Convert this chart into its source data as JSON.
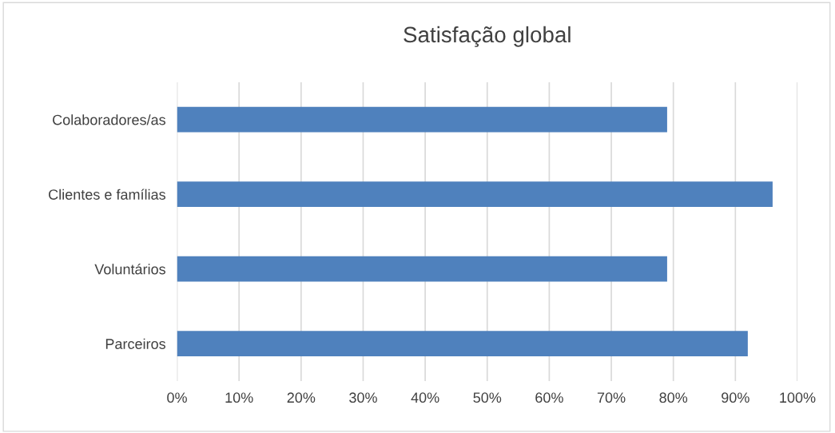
{
  "chart_data": {
    "type": "bar",
    "orientation": "horizontal",
    "title": "Satisfação global",
    "categories": [
      "Colaboradores/as",
      "Clientes e famílias",
      "Voluntários",
      "Parceiros"
    ],
    "values": [
      79,
      96,
      79,
      92
    ],
    "color": "#4f81bd",
    "xlim": [
      0,
      100
    ],
    "xticks": [
      {
        "value": 0,
        "label": "0%"
      },
      {
        "value": 10,
        "label": "10%"
      },
      {
        "value": 20,
        "label": "20%"
      },
      {
        "value": 30,
        "label": "30%"
      },
      {
        "value": 40,
        "label": "40%"
      },
      {
        "value": 50,
        "label": "50%"
      },
      {
        "value": 60,
        "label": "60%"
      },
      {
        "value": 70,
        "label": "70%"
      },
      {
        "value": 80,
        "label": "80%"
      },
      {
        "value": 90,
        "label": "90%"
      },
      {
        "value": 100,
        "label": "100%"
      }
    ],
    "grid": "x",
    "legend": false
  }
}
